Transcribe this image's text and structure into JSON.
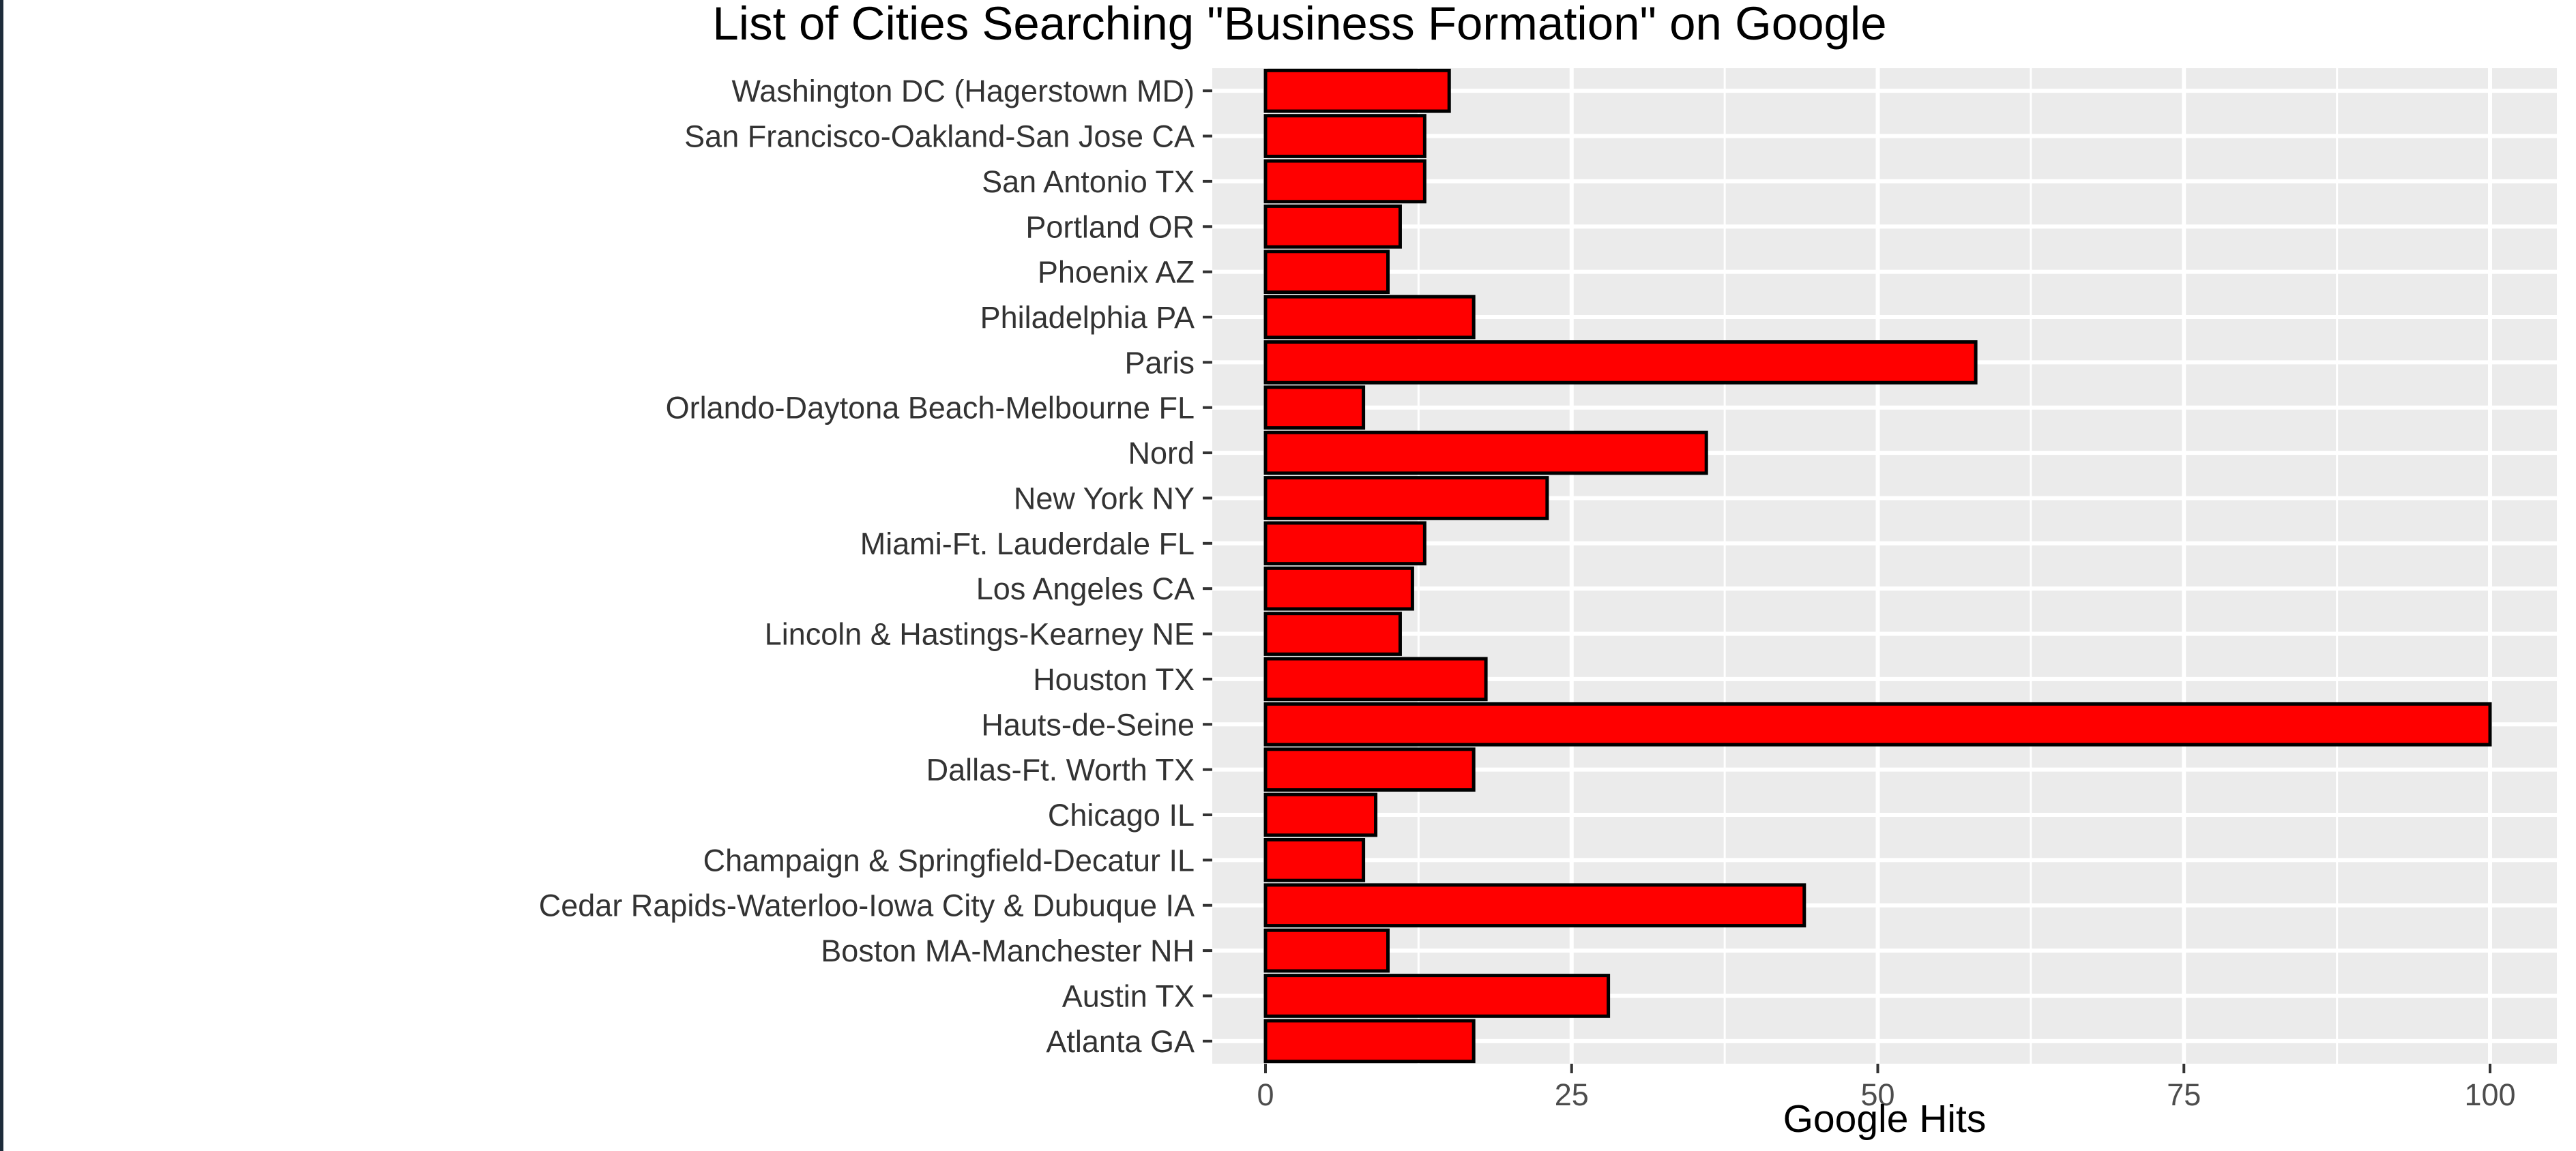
{
  "chart_data": {
    "type": "bar",
    "orientation": "horizontal",
    "title": "List of Cities Searching \"Business Formation\" on Google",
    "xlabel": "Google Hits",
    "ylabel": "",
    "xlim": [
      0,
      100
    ],
    "x_ticks": [
      0,
      25,
      50,
      75,
      100
    ],
    "grid": true,
    "legend": "none",
    "bar_color": "#ff0000",
    "bar_border_color": "#000000",
    "panel_background": "#ebebeb",
    "categories": [
      "Washington DC (Hagerstown MD)",
      "San Francisco-Oakland-San Jose CA",
      "San Antonio TX",
      "Portland OR",
      "Phoenix AZ",
      "Philadelphia PA",
      "Paris",
      "Orlando-Daytona Beach-Melbourne FL",
      "Nord",
      "New York NY",
      "Miami-Ft. Lauderdale FL",
      "Los Angeles CA",
      "Lincoln & Hastings-Kearney NE",
      "Houston TX",
      "Hauts-de-Seine",
      "Dallas-Ft. Worth TX",
      "Chicago IL",
      "Champaign & Springfield-Decatur IL",
      "Cedar Rapids-Waterloo-Iowa City & Dubuque IA",
      "Boston MA-Manchester NH",
      "Austin TX",
      "Atlanta GA"
    ],
    "values": [
      15,
      13,
      13,
      11,
      10,
      17,
      58,
      8,
      36,
      23,
      13,
      12,
      11,
      18,
      100,
      17,
      9,
      8,
      44,
      10,
      28,
      17
    ]
  }
}
